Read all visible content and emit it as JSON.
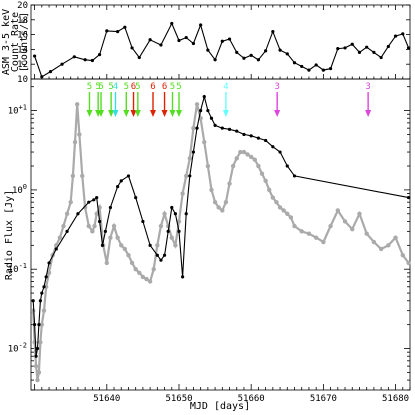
{
  "chart_data": [
    {
      "id": "asm",
      "type": "line",
      "ylabel": "ASM 3-5 keV Count Rate [counts/s]",
      "ylabel_line1": "ASM 3-5 keV",
      "ylabel_line2": "Count Rate",
      "ylabel_line3": "[counts/s]",
      "xlim": [
        51629.5,
        51682
      ],
      "ylim": [
        10,
        20
      ],
      "yticks": [
        10,
        12,
        14,
        16,
        18,
        20
      ],
      "grid": false,
      "series": [
        {
          "color": "#000000",
          "marker": "dot",
          "x": [
            51630.0,
            51631.0,
            51632.2,
            51633.8,
            51635.5,
            51637.0,
            51638.0,
            51639.0,
            51640.0,
            51641.5,
            51642.5,
            51643.5,
            51644.5,
            51646.0,
            51647.5,
            51649.0,
            51650.0,
            51651.0,
            51652.0,
            51653.0,
            51654.0,
            51655.0,
            51656.0,
            51657.0,
            51658.0,
            51659.0,
            51660.0,
            51661.0,
            51662.0,
            51663.0,
            51664.0,
            51665.0,
            51666.0,
            51667.0,
            51668.0,
            51669.0,
            51670.0,
            51671.0,
            51672.0,
            51673.0,
            51674.0,
            51675.0,
            51676.0,
            51677.0,
            51678.0,
            51679.0,
            51680.0,
            51681.0,
            51681.8
          ],
          "y": [
            13.1,
            10.3,
            11.0,
            12.0,
            13.0,
            12.6,
            12.5,
            13.3,
            16.5,
            16.4,
            17.0,
            14.2,
            12.9,
            15.3,
            14.6,
            17.5,
            15.2,
            15.6,
            14.8,
            17.3,
            13.9,
            12.6,
            15.1,
            15.4,
            13.6,
            12.8,
            13.2,
            12.6,
            13.8,
            16.4,
            13.9,
            13.4,
            12.2,
            11.7,
            11.2,
            11.9,
            11.2,
            11.4,
            14.1,
            14.2,
            14.7,
            13.6,
            14.3,
            13.6,
            12.9,
            14.4,
            15.8,
            16.1,
            14.2
          ]
        }
      ],
      "annotations": [
        {
          "label": "5",
          "x": 51637.6,
          "color": "#55dd22",
          "marker": "arrow"
        },
        {
          "label": "5",
          "x": 51638.8,
          "color": "#55dd22",
          "marker": "arrow"
        },
        {
          "label": "5",
          "x": 51639.2,
          "color": "#55dd22",
          "marker": "arrow"
        },
        {
          "label": "5",
          "x": 51640.6,
          "color": "#55dd22",
          "marker": "arrow"
        },
        {
          "label": "4",
          "x": 51641.2,
          "color": "#33e0e0",
          "marker": "arrow"
        },
        {
          "label": "5",
          "x": 51642.7,
          "color": "#55dd22",
          "marker": "arrow"
        },
        {
          "label": "6",
          "x": 51643.7,
          "color": "#dd2200",
          "marker": "arrow"
        },
        {
          "label": "5",
          "x": 51644.3,
          "color": "#55dd22",
          "marker": "arrow"
        },
        {
          "label": "6",
          "x": 51646.4,
          "color": "#dd2200",
          "marker": "arrow"
        },
        {
          "label": "6",
          "x": 51648.0,
          "color": "#dd2200",
          "marker": "arrow"
        },
        {
          "label": "5",
          "x": 51649.1,
          "color": "#55dd22",
          "marker": "arrow"
        },
        {
          "label": "5",
          "x": 51650.0,
          "color": "#55dd22",
          "marker": "arrow"
        },
        {
          "label": "4",
          "x": 51656.5,
          "color": "#66ffff",
          "marker": "arrow"
        },
        {
          "label": "3",
          "x": 51663.6,
          "color": "#dd44dd",
          "marker": "arrow"
        },
        {
          "label": "3",
          "x": 51676.2,
          "color": "#dd44dd",
          "marker": "arrow"
        }
      ]
    },
    {
      "id": "radio",
      "type": "line",
      "xlabel": "MJD [days]",
      "ylabel": "Radio Flux [Jy]",
      "xlim": [
        51629.5,
        51682
      ],
      "ylim": [
        0.003,
        25
      ],
      "yscale": "log",
      "yticks": [
        0.01,
        0.1,
        1,
        10
      ],
      "ytick_labels": [
        "10^-2",
        "10^-1",
        "10^0",
        "10^+1"
      ],
      "xticks": [
        51640,
        51650,
        51660,
        51670,
        51680
      ],
      "xtick_labels": [
        "51640",
        "51650",
        "51660",
        "51670",
        "51680"
      ],
      "grid": false,
      "series": [
        {
          "color": "#aaaaaa",
          "marker": "dot",
          "x": [
            51629.8,
            51630.0,
            51630.2,
            51630.4,
            51630.6,
            51630.8,
            51631.0,
            51631.3,
            51631.6,
            51632.0,
            51632.5,
            51633.0,
            51633.5,
            51634.0,
            51634.5,
            51635.0,
            51635.3,
            51635.6,
            51635.9,
            51636.2,
            51636.6,
            51637.0,
            51637.5,
            51638.0,
            51638.3,
            51638.6,
            51639.0,
            51639.5,
            51640.0,
            51640.5,
            51641.0,
            51641.5,
            51642.0,
            51642.5,
            51643.0,
            51643.5,
            51644.0,
            51644.5,
            51645.0,
            51645.5,
            51646.0,
            51646.5,
            51647.0,
            51647.5,
            51648.0,
            51648.5,
            51649.0,
            51649.5,
            51650.0,
            51650.5,
            51651.0,
            51651.5,
            51652.0,
            51652.5,
            51653.0,
            51653.5,
            51654.0,
            51654.5,
            51655.0,
            51655.5,
            51656.0,
            51656.5,
            51657.0,
            51657.5,
            51658.0,
            51658.5,
            51659.0,
            51659.5,
            51660.0,
            51660.5,
            51661.0,
            51661.5,
            51662.0,
            51662.5,
            51663.0,
            51663.5,
            51664.0,
            51664.5,
            51665.0,
            51665.5,
            51666.0,
            51667.0,
            51668.0,
            51669.0,
            51670.0,
            51671.0,
            51672.0,
            51673.0,
            51674.0,
            51675.0,
            51676.0,
            51677.0,
            51678.0,
            51679.0,
            51680.0,
            51681.0,
            51681.8
          ],
          "y": [
            0.03,
            0.012,
            0.006,
            0.004,
            0.005,
            0.012,
            0.02,
            0.03,
            0.06,
            0.09,
            0.15,
            0.2,
            0.25,
            0.35,
            0.5,
            0.7,
            1.5,
            4.0,
            12.0,
            5.0,
            1.5,
            0.6,
            0.35,
            0.3,
            0.35,
            0.5,
            0.6,
            0.2,
            0.12,
            0.25,
            0.35,
            0.25,
            0.2,
            0.18,
            0.15,
            0.12,
            0.1,
            0.09,
            0.08,
            0.075,
            0.07,
            0.1,
            0.2,
            0.35,
            0.5,
            0.35,
            0.25,
            0.2,
            0.4,
            0.9,
            1.5,
            2.5,
            6.0,
            12.0,
            8.0,
            4.0,
            2.0,
            1.0,
            0.7,
            0.6,
            0.55,
            0.7,
            1.2,
            2.0,
            2.5,
            3.0,
            3.0,
            2.8,
            2.6,
            2.4,
            2.0,
            1.6,
            1.3,
            1.0,
            0.8,
            0.7,
            0.6,
            0.55,
            0.5,
            0.45,
            0.35,
            0.3,
            0.28,
            0.25,
            0.22,
            0.35,
            0.55,
            0.4,
            0.32,
            0.5,
            0.28,
            0.22,
            0.18,
            0.2,
            0.25,
            0.15,
            0.12
          ]
        },
        {
          "color": "#000000",
          "marker": "dot",
          "x": [
            51629.8,
            51630.0,
            51630.2,
            51630.4,
            51630.6,
            51630.8,
            51631.0,
            51631.3,
            51631.6,
            51632.0,
            51633.0,
            51634.5,
            51636.0,
            51637.5,
            51638.2,
            51638.6,
            51639.0,
            51639.4,
            51639.8,
            51640.5,
            51641.5,
            51642.0,
            51643.0,
            51644.0,
            51645.0,
            51646.0,
            51647.0,
            51647.5,
            51648.0,
            51648.5,
            51649.0,
            51649.5,
            51650.0,
            51650.5,
            51651.0,
            51651.5,
            51652.0,
            51652.5,
            51653.0,
            51653.5,
            51654.0,
            51654.5,
            51655.0,
            51656.0,
            51657.0,
            51658.0,
            51659.0,
            51660.0,
            51661.0,
            51662.0,
            51663.0,
            51664.0,
            51665.0,
            51666.0,
            51681.8
          ],
          "y": [
            0.04,
            0.02,
            0.008,
            0.01,
            0.02,
            0.04,
            0.05,
            0.06,
            0.08,
            0.12,
            0.18,
            0.3,
            0.5,
            0.7,
            0.75,
            0.8,
            0.4,
            0.2,
            0.3,
            0.6,
            1.1,
            1.3,
            1.5,
            0.8,
            0.4,
            0.2,
            0.15,
            0.13,
            0.15,
            0.3,
            0.6,
            0.5,
            0.3,
            0.08,
            0.5,
            1.5,
            3.0,
            6.0,
            10.0,
            15.0,
            10.0,
            8.0,
            6.5,
            6.0,
            5.8,
            5.5,
            5.0,
            4.8,
            4.5,
            4.2,
            3.5,
            3.0,
            2.0,
            1.5,
            0.8
          ]
        }
      ]
    }
  ]
}
